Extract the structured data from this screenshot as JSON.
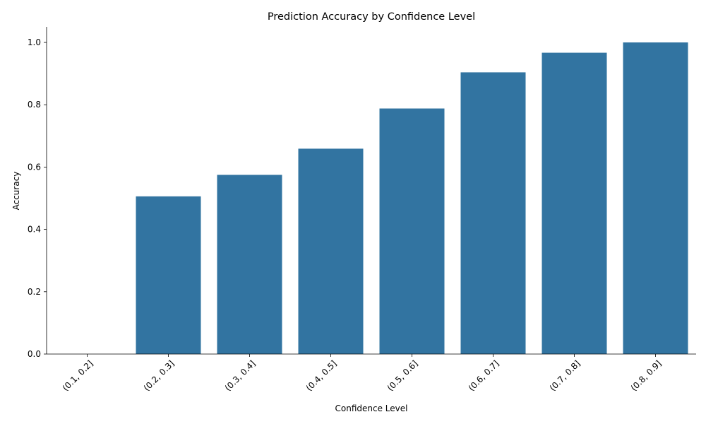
{
  "chart_data": {
    "type": "bar",
    "title": "Prediction Accuracy by Confidence Level",
    "xlabel": "Confidence Level",
    "ylabel": "Accuracy",
    "categories": [
      "(0.1, 0.2]",
      "(0.2, 0.3]",
      "(0.3, 0.4]",
      "(0.4, 0.5]",
      "(0.5, 0.6]",
      "(0.6, 0.7]",
      "(0.7, 0.8]",
      "(0.8, 0.9]"
    ],
    "values": [
      0.0,
      0.506,
      0.575,
      0.659,
      0.788,
      0.904,
      0.967,
      1.0
    ],
    "ylim": [
      0,
      1.05
    ],
    "yticks": [
      0.0,
      0.2,
      0.4,
      0.6,
      0.8,
      1.0
    ],
    "ytick_labels": [
      "0.0",
      "0.2",
      "0.4",
      "0.6",
      "0.8",
      "1.0"
    ],
    "bar_color": "#3274a1",
    "grid": false,
    "legend": "none",
    "xtick_rotation": 45
  }
}
